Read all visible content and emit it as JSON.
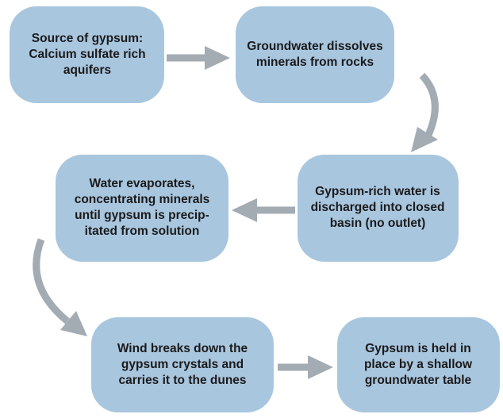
{
  "nodes": [
    {
      "lines": [
        "Source of gypsum:",
        "Calcium sulfate rich",
        "aquifers"
      ]
    },
    {
      "lines": [
        "Groundwater dissolves",
        "minerals from rocks"
      ]
    },
    {
      "lines": [
        "Gypsum-rich water is",
        "discharged into closed",
        "basin (no outlet)"
      ]
    },
    {
      "lines": [
        "Water evaporates,",
        "concentrating minerals",
        "until gypsum is precip-",
        "itated from solution"
      ]
    },
    {
      "lines": [
        "Wind breaks down the",
        "gypsum crystals and",
        "carries it to the dunes"
      ]
    },
    {
      "lines": [
        "Gypsum is held in",
        "place by a shallow",
        "groundwater table"
      ]
    }
  ]
}
